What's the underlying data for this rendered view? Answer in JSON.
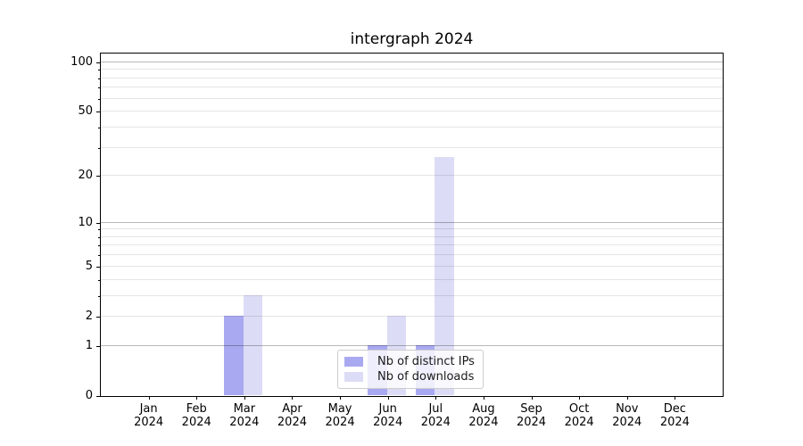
{
  "chart_data": {
    "type": "bar",
    "title": "intergraph 2024",
    "categories": [
      "Jan",
      "Feb",
      "Mar",
      "Apr",
      "May",
      "Jun",
      "Jul",
      "Aug",
      "Sep",
      "Oct",
      "Nov",
      "Dec"
    ],
    "x_tick_second_line": "2024",
    "series": [
      {
        "name": "Nb of distinct IPs",
        "color": "#a9a9f1",
        "values": [
          0,
          0,
          2,
          0,
          0,
          1,
          1,
          0,
          0,
          0,
          0,
          0
        ]
      },
      {
        "name": "Nb of downloads",
        "color": "#dcdcf6",
        "values": [
          0,
          0,
          3,
          0,
          0,
          2,
          26,
          0,
          0,
          0,
          0,
          0
        ]
      }
    ],
    "y_scale": "log1p",
    "ylim": [
      0,
      113
    ],
    "y_tick_values": [
      0,
      1,
      2,
      5,
      10,
      20,
      50,
      100
    ],
    "y_major_grid_values": [
      1,
      10,
      100
    ],
    "y_minor_grid_values": [
      2,
      3,
      4,
      5,
      6,
      7,
      8,
      9,
      20,
      30,
      40,
      50,
      60,
      70,
      80,
      90
    ],
    "grid": true,
    "legend_location": "lower center",
    "colors": {
      "major_grid": "rgba(0,0,0,0.28)",
      "minor_grid": "rgba(0,0,0,0.10)",
      "spine": "#000000",
      "text": "#000000",
      "background": "#ffffff"
    }
  }
}
